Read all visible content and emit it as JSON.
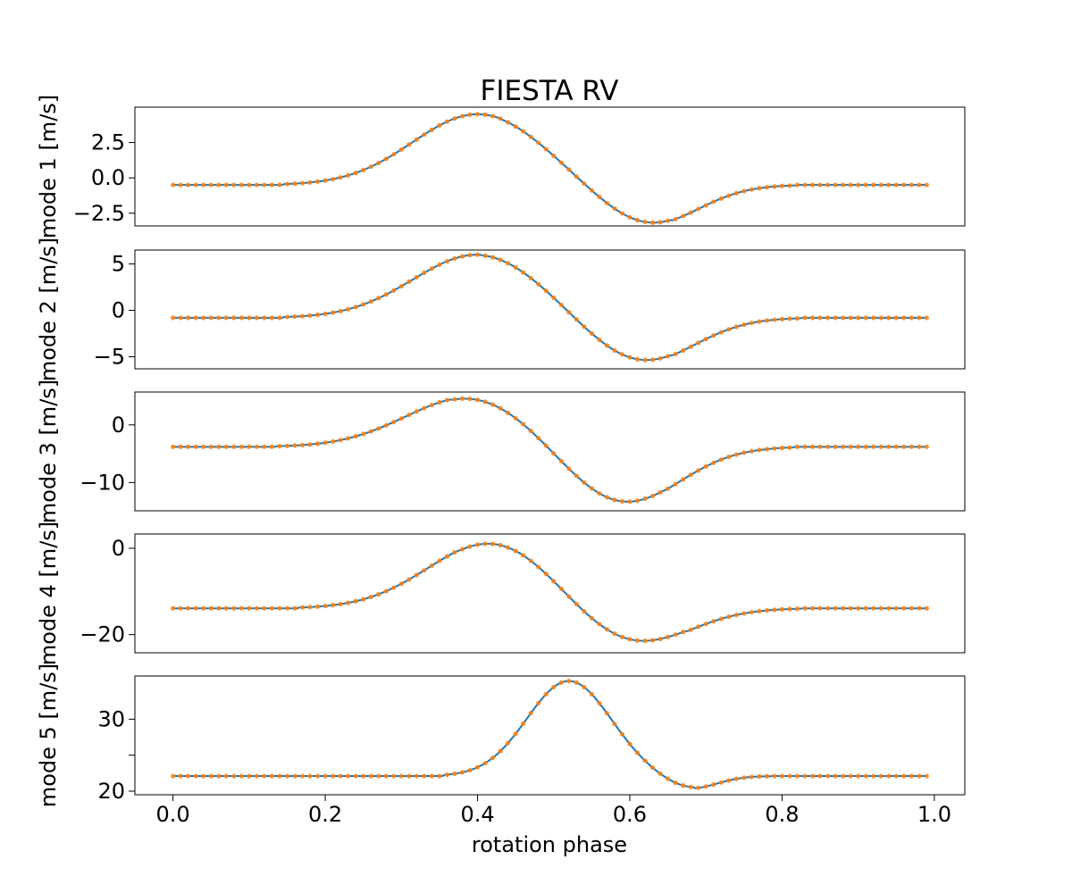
{
  "chart_data": {
    "type": "line",
    "title": "FIESTA RV",
    "xlabel": "rotation phase",
    "xlim": [
      -0.05,
      1.04
    ],
    "xticks": [
      0.0,
      0.2,
      0.4,
      0.6,
      0.8,
      1.0
    ],
    "xtick_labels": [
      "0.0",
      "0.2",
      "0.4",
      "0.6",
      "0.8",
      "1.0"
    ],
    "line_color": "#1f77b4",
    "marker_color": "#ff7f0e",
    "phase_start": 0.0,
    "phase_step": 0.01,
    "panels": [
      {
        "ylabel": "mode 1 [m/s]",
        "ylim": [
          -3.4,
          5.0
        ],
        "yticks": [
          2.5,
          0.0,
          -2.5
        ],
        "ytick_labels": [
          "2.5",
          "0.0",
          "−2.5"
        ],
        "baseline": -0.5,
        "features": [
          {
            "center": 0.4,
            "amplitude": 5.0,
            "width": 0.085
          },
          {
            "center": 0.625,
            "amplitude": -2.8,
            "width": 0.065
          }
        ]
      },
      {
        "ylabel": "mode 2 [m/s]",
        "ylim": [
          -6.3,
          6.5
        ],
        "yticks": [
          5,
          0,
          -5
        ],
        "ytick_labels": [
          "5",
          "0",
          "−5"
        ],
        "baseline": -0.8,
        "features": [
          {
            "center": 0.4,
            "amplitude": 6.8,
            "width": 0.085
          },
          {
            "center": 0.615,
            "amplitude": -4.8,
            "width": 0.07
          }
        ]
      },
      {
        "ylabel": "mode 3 [m/s]",
        "ylim": [
          -14.9,
          5.7
        ],
        "yticks": [
          0,
          -10
        ],
        "ytick_labels": [
          "0",
          "−10"
        ],
        "baseline": -3.8,
        "features": [
          {
            "center": 0.39,
            "amplitude": 8.6,
            "width": 0.085
          },
          {
            "center": 0.59,
            "amplitude": -10.0,
            "width": 0.075
          }
        ]
      },
      {
        "ylabel": "mode 4 [m/s]",
        "ylim": [
          -24.2,
          3.3
        ],
        "yticks": [
          0,
          -20
        ],
        "ytick_labels": [
          "0",
          "−20"
        ],
        "baseline": -13.9,
        "features": [
          {
            "center": 0.42,
            "amplitude": 15.4,
            "width": 0.085
          },
          {
            "center": 0.6,
            "amplitude": -8.8,
            "width": 0.075
          }
        ]
      },
      {
        "ylabel": "mode 5 [m/s]",
        "ylim": [
          19.5,
          36.0
        ],
        "yticks": [
          30,
          25,
          20
        ],
        "ytick_labels": [
          "30",
          "",
          "20"
        ],
        "baseline": 22.1,
        "features": [
          {
            "center": 0.52,
            "amplitude": 13.2,
            "width": 0.055
          },
          {
            "center": 0.68,
            "amplitude": -1.7,
            "width": 0.035
          }
        ]
      }
    ]
  }
}
